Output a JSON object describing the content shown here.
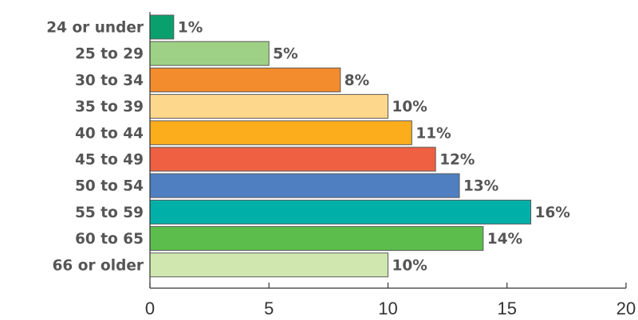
{
  "chart_data": {
    "type": "bar",
    "orientation": "horizontal",
    "categories": [
      "24 or under",
      "25 to 29",
      "30 to 34",
      "35 to 39",
      "40 to 44",
      "45 to 49",
      "50 to 54",
      "55 to 59",
      "60 to 65",
      "66 or older"
    ],
    "values": [
      1,
      5,
      8,
      10,
      11,
      12,
      13,
      16,
      14,
      10
    ],
    "value_labels": [
      "1%",
      "5%",
      "8%",
      "10%",
      "11%",
      "12%",
      "13%",
      "16%",
      "14%",
      "10%"
    ],
    "colors": [
      "#0aa06e",
      "#9ed185",
      "#f28c2d",
      "#fdd78c",
      "#fbad1b",
      "#ee6041",
      "#4f7fc1",
      "#00b0a8",
      "#5cbd4c",
      "#d0e8b0"
    ],
    "xlim": [
      0,
      20
    ],
    "xticks": [
      0,
      5,
      10,
      15,
      20
    ],
    "grid": false,
    "title": "",
    "xlabel": "",
    "ylabel": ""
  }
}
